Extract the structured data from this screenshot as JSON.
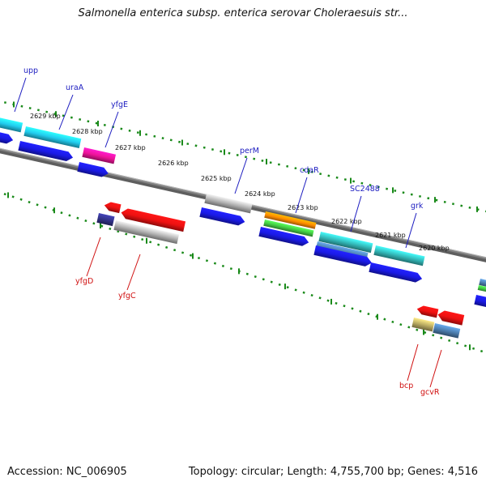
{
  "title": "Salmonella enterica subsp. enterica serovar Choleraesuis str...",
  "accession": "Accession: NC_006905",
  "summary": "Topology: circular; Length: 4,755,700 bp; Genes: 4,516",
  "ruler_ticks": [
    "2629 kbp",
    "2628 kbp",
    "2627 kbp",
    "2626 kbp",
    "2625 kbp",
    "2624 kbp",
    "2623 kbp",
    "2622 kbp",
    "2621 kbp",
    "2620 kbp"
  ],
  "genes_top": [
    "upp",
    "uraA",
    "yfgE",
    "perM",
    "cdaR",
    "SC2488",
    "grk"
  ],
  "genes_bottom": [
    "yfgD",
    "yfgC",
    "bcp",
    "gcvR"
  ],
  "colors": {
    "backbone": "#808080",
    "ruler_dots": "#1a8a1a",
    "label_top": "#1c1cc0",
    "label_bottom": "#d01010",
    "cds_blue": "#1a1ae6",
    "cyan": "#22ccee",
    "teal": "#33bbbb",
    "magenta": "#ee1499",
    "gray": "#b4b4b4",
    "orange": "#ff8c00",
    "green": "#44cc44",
    "steel": "#4d7fb0",
    "red": "#ee1111",
    "khaki": "#bcae64",
    "navy": "#33338a"
  }
}
